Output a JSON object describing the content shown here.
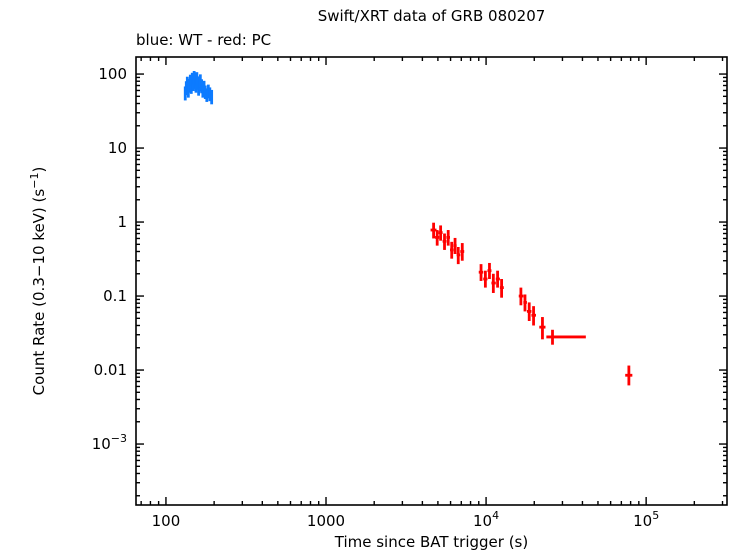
{
  "title": "Swift/XRT data of GRB 080207",
  "subtitle": "blue: WT - red: PC",
  "labels": {
    "xlabel": "Time since BAT trigger (s)",
    "ylabel_pre": "Count Rate (0.3−10 keV) (s",
    "ylabel_sup": "−1",
    "ylabel_post": ")"
  },
  "colors": {
    "wt": "#0d7bff",
    "pc": "#ff0000",
    "axis": "#000000",
    "background": "#ffffff"
  },
  "chart_data": {
    "type": "scatter",
    "title": "Swift/XRT data of GRB 080207",
    "subtitle": "blue: WT - red: PC",
    "xlabel": "Time since BAT trigger (s)",
    "ylabel": "Count Rate (0.3-10 keV) (s^-1)",
    "xscale": "log",
    "yscale": "log",
    "xlim": [
      65,
      320000
    ],
    "ylim": [
      0.00015,
      170
    ],
    "grid": false,
    "legend": "none",
    "x_ticks": [
      {
        "text": "100",
        "sup": "",
        "value": 100
      },
      {
        "text": "1000",
        "sup": "",
        "value": 1000
      },
      {
        "text": "10",
        "sup": "4",
        "value": 10000
      },
      {
        "text": "10",
        "sup": "5",
        "value": 100000
      }
    ],
    "y_ticks": [
      {
        "text": "100",
        "sup": "",
        "value": 100
      },
      {
        "text": "10",
        "sup": "",
        "value": 10
      },
      {
        "text": "1",
        "sup": "",
        "value": 1
      },
      {
        "text": "0.1",
        "sup": "",
        "value": 0.1
      },
      {
        "text": "0.01",
        "sup": "",
        "value": 0.01
      },
      {
        "text": "10",
        "sup": "−3",
        "value": 0.001
      }
    ],
    "series": [
      {
        "name": "WT",
        "color_key": "wt",
        "point_format": [
          "t",
          "t_lo",
          "t_hi",
          "rate",
          "rate_lo",
          "rate_hi"
        ],
        "points": [
          [
            132,
            130.5,
            133.5,
            55,
            44,
            68
          ],
          [
            134,
            132.5,
            135.5,
            65,
            52,
            80
          ],
          [
            136,
            134.5,
            137.5,
            75,
            60,
            92
          ],
          [
            138,
            136.5,
            139.5,
            60,
            48,
            74
          ],
          [
            140,
            138.5,
            141.5,
            70,
            56,
            86
          ],
          [
            142,
            140.5,
            143.5,
            80,
            64,
            98
          ],
          [
            144,
            142.5,
            145.5,
            68,
            54,
            84
          ],
          [
            146,
            144.5,
            147.5,
            85,
            68,
            104
          ],
          [
            148,
            146.5,
            149.5,
            74,
            59,
            91
          ],
          [
            150,
            148.5,
            151.5,
            90,
            72,
            110
          ],
          [
            152,
            150.5,
            153.5,
            79,
            63,
            97
          ],
          [
            154,
            152.5,
            155.5,
            70,
            56,
            86
          ],
          [
            156,
            154.5,
            157.5,
            86,
            69,
            106
          ],
          [
            158,
            156.5,
            159.5,
            76,
            61,
            93
          ],
          [
            160,
            158.5,
            161.5,
            64,
            51,
            79
          ],
          [
            162,
            160.5,
            163.5,
            72,
            58,
            88
          ],
          [
            164,
            162.5,
            165.5,
            81,
            65,
            99
          ],
          [
            167,
            165,
            169,
            69,
            55,
            85
          ],
          [
            170,
            168,
            172,
            60,
            48,
            74
          ],
          [
            173,
            171,
            175,
            66,
            53,
            81
          ],
          [
            176,
            174,
            178,
            57,
            46,
            70
          ],
          [
            180,
            178,
            182,
            52,
            42,
            64
          ],
          [
            184,
            182,
            186,
            59,
            47,
            72
          ],
          [
            188,
            186,
            190,
            54,
            43,
            66
          ],
          [
            193,
            190,
            196,
            49,
            39,
            61
          ]
        ]
      },
      {
        "name": "PC",
        "color_key": "pc",
        "point_format": [
          "t",
          "t_lo",
          "t_hi",
          "rate",
          "rate_lo",
          "rate_hi"
        ],
        "points": [
          [
            4700,
            4500,
            4900,
            0.78,
            0.6,
            0.98
          ],
          [
            4950,
            4800,
            5100,
            0.62,
            0.48,
            0.78
          ],
          [
            5200,
            5050,
            5350,
            0.72,
            0.56,
            0.9
          ],
          [
            5500,
            5350,
            5650,
            0.55,
            0.42,
            0.7
          ],
          [
            5800,
            5650,
            5950,
            0.62,
            0.48,
            0.78
          ],
          [
            6100,
            5950,
            6250,
            0.42,
            0.32,
            0.54
          ],
          [
            6400,
            6250,
            6550,
            0.48,
            0.37,
            0.61
          ],
          [
            6700,
            6550,
            6900,
            0.36,
            0.27,
            0.46
          ],
          [
            7100,
            6900,
            7300,
            0.4,
            0.3,
            0.52
          ],
          [
            9300,
            9000,
            9600,
            0.21,
            0.16,
            0.27
          ],
          [
            9900,
            9600,
            10200,
            0.17,
            0.13,
            0.22
          ],
          [
            10500,
            10200,
            10800,
            0.22,
            0.17,
            0.28
          ],
          [
            11100,
            10800,
            11500,
            0.15,
            0.11,
            0.2
          ],
          [
            11800,
            11500,
            12200,
            0.17,
            0.13,
            0.22
          ],
          [
            12500,
            12200,
            12900,
            0.13,
            0.095,
            0.17
          ],
          [
            16500,
            16000,
            17100,
            0.1,
            0.075,
            0.13
          ],
          [
            17500,
            17100,
            18000,
            0.082,
            0.062,
            0.105
          ],
          [
            18600,
            18000,
            19200,
            0.062,
            0.046,
            0.082
          ],
          [
            19800,
            19200,
            20500,
            0.055,
            0.04,
            0.073
          ],
          [
            22500,
            21500,
            23500,
            0.038,
            0.026,
            0.052
          ],
          [
            26000,
            23800,
            42000,
            0.028,
            0.022,
            0.035
          ],
          [
            78000,
            74000,
            82000,
            0.0085,
            0.0062,
            0.0115
          ]
        ]
      }
    ]
  }
}
